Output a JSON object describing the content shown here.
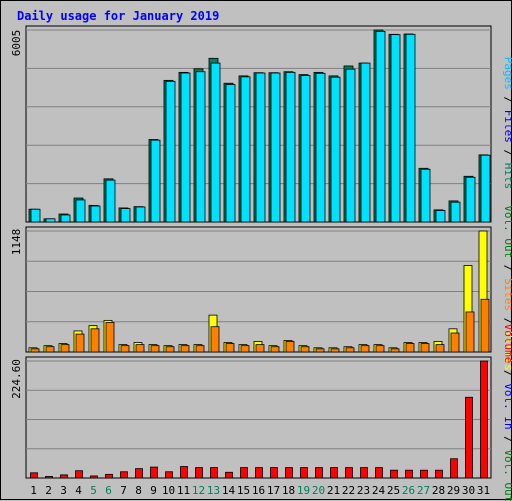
{
  "chart_data": [
    {
      "type": "bar",
      "title": "Daily usage for January 2019",
      "ymax_label": "6005",
      "ylim": [
        0,
        6005
      ],
      "legend": [
        "Hits",
        "Files",
        "Pages"
      ],
      "legend_placement": "right",
      "grid": true,
      "categories": [
        "1",
        "2",
        "3",
        "4",
        "5",
        "6",
        "7",
        "8",
        "9",
        "10",
        "11",
        "12",
        "13",
        "14",
        "15",
        "16",
        "17",
        "18",
        "19",
        "20",
        "21",
        "22",
        "23",
        "24",
        "25",
        "26",
        "27",
        "28",
        "29",
        "30",
        "31"
      ],
      "series": [
        {
          "name": "Hits",
          "values": [
            400,
            100,
            250,
            750,
            520,
            1350,
            440,
            480,
            2580,
            4430,
            4680,
            4790,
            5120,
            4340,
            4570,
            4670,
            4670,
            4700,
            4610,
            4680,
            4570,
            4880,
            4970,
            6005,
            5870,
            5880,
            1680,
            380,
            660,
            1430,
            2100
          ]
        },
        {
          "name": "Files",
          "values": [
            400,
            100,
            220,
            690,
            500,
            1310,
            420,
            470,
            2560,
            4400,
            4660,
            4700,
            4970,
            4300,
            4540,
            4660,
            4660,
            4680,
            4580,
            4650,
            4530,
            4780,
            4970,
            5960,
            5860,
            5870,
            1650,
            360,
            620,
            1400,
            2090
          ]
        }
      ]
    },
    {
      "type": "bar",
      "ymax_label": "1148",
      "ylim": [
        0,
        1148
      ],
      "legend": [
        "Visits",
        "Sites"
      ],
      "legend_placement": "right",
      "grid": true,
      "categories": [
        "1",
        "2",
        "3",
        "4",
        "5",
        "6",
        "7",
        "8",
        "9",
        "10",
        "11",
        "12",
        "13",
        "14",
        "15",
        "16",
        "17",
        "18",
        "19",
        "20",
        "21",
        "22",
        "23",
        "24",
        "25",
        "26",
        "27",
        "28",
        "29",
        "30",
        "31"
      ],
      "series": [
        {
          "name": "Visits",
          "values": [
            40,
            60,
            80,
            200,
            250,
            300,
            70,
            90,
            70,
            60,
            70,
            70,
            350,
            90,
            70,
            100,
            60,
            110,
            60,
            40,
            40,
            50,
            70,
            70,
            40,
            90,
            90,
            100,
            220,
            820,
            1148
          ]
        },
        {
          "name": "Sites",
          "values": [
            30,
            50,
            70,
            170,
            220,
            280,
            60,
            70,
            60,
            50,
            60,
            60,
            240,
            80,
            60,
            70,
            50,
            100,
            50,
            30,
            30,
            40,
            60,
            60,
            30,
            80,
            80,
            70,
            180,
            380,
            500
          ]
        }
      ]
    },
    {
      "type": "bar",
      "ymax_label": "224.60",
      "ylim": [
        0,
        224.6
      ],
      "legend": [
        "Volume",
        "Vol. In",
        "Vol. Out"
      ],
      "legend_placement": "right",
      "grid": true,
      "categories": [
        "1",
        "2",
        "3",
        "4",
        "5",
        "6",
        "7",
        "8",
        "9",
        "10",
        "11",
        "12",
        "13",
        "14",
        "15",
        "16",
        "17",
        "18",
        "19",
        "20",
        "21",
        "22",
        "23",
        "24",
        "25",
        "26",
        "27",
        "28",
        "29",
        "30",
        "31"
      ],
      "series": [
        {
          "name": "Volume",
          "values": [
            10,
            3,
            6,
            14,
            4,
            7,
            12,
            18,
            21,
            12,
            22,
            20,
            20,
            11,
            20,
            20,
            20,
            20,
            20,
            20,
            20,
            20,
            20,
            20,
            15,
            15,
            15,
            15,
            37,
            155,
            224.6
          ]
        }
      ]
    }
  ],
  "weekend_days": [
    "5",
    "6",
    "12",
    "13",
    "19",
    "20",
    "26",
    "27"
  ],
  "colors": {
    "background": "#c0c0c0",
    "title": "#0000ff",
    "grid": "#808080",
    "hits": "#00805c",
    "files": "#00e0ff",
    "pages": "#00c0ff",
    "visits": "#ffff00",
    "sites": "#ff8000",
    "volume": "#ff0000",
    "vol_in": "#0000ff",
    "vol_out": "#008000",
    "weekend": "#00805c",
    "weekday": "#000000"
  }
}
